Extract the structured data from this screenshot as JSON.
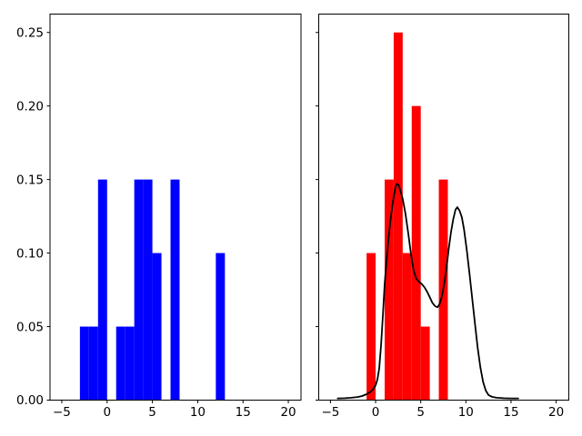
{
  "figure": {
    "background": "#ffffff",
    "title": "",
    "frame_color": "#000000"
  },
  "chart_data": [
    {
      "type": "bar",
      "subtype": "density-histogram",
      "panel": "left",
      "title": "",
      "xlabel": "",
      "ylabel": "",
      "bar_color": "#0000ff",
      "xlim": [
        -6.3,
        21.4
      ],
      "ylim": [
        0,
        0.2625
      ],
      "xticks": [
        -5,
        0,
        5,
        10,
        15,
        20
      ],
      "xtick_labels": [
        "−5",
        "0",
        "5",
        "10",
        "15",
        "20"
      ],
      "yticks": [
        0,
        0.05,
        0.1,
        0.15,
        0.2,
        0.25
      ],
      "ytick_labels": [
        "0.00",
        "0.05",
        "0.10",
        "0.15",
        "0.20",
        "0.25"
      ],
      "show_ytick_labels": true,
      "grid": false,
      "legend": null,
      "bin_edges": [
        -3,
        -2,
        -1,
        0,
        1,
        2,
        3,
        4,
        5,
        6,
        7,
        8,
        9,
        10,
        11,
        12,
        13
      ],
      "densities": [
        0.05,
        0.05,
        0.15,
        0,
        0.05,
        0.05,
        0.15,
        0.15,
        0.1,
        0,
        0.15,
        0,
        0,
        0,
        0,
        0.1
      ]
    },
    {
      "type": "bar",
      "subtype": "density-histogram-with-kde",
      "panel": "right",
      "title": "",
      "xlabel": "",
      "ylabel": "",
      "bar_color": "#ff0000",
      "xlim": [
        -6.3,
        21.4
      ],
      "ylim": [
        0,
        0.2625
      ],
      "xticks": [
        -5,
        0,
        5,
        10,
        15,
        20
      ],
      "xtick_labels": [
        "−5",
        "0",
        "5",
        "10",
        "15",
        "20"
      ],
      "yticks": [
        0,
        0.05,
        0.1,
        0.15,
        0.2,
        0.25
      ],
      "ytick_labels": [
        "0.00",
        "0.05",
        "0.10",
        "0.15",
        "0.20",
        "0.25"
      ],
      "show_ytick_labels": false,
      "grid": false,
      "legend": null,
      "bin_edges": [
        -1,
        0,
        1,
        2,
        3,
        4,
        5,
        6,
        7,
        8
      ],
      "densities": [
        0.1,
        0,
        0.15,
        0.25,
        0.1,
        0.2,
        0.05,
        0,
        0.15
      ],
      "kde": {
        "color": "#000000",
        "line_width": 1.8,
        "points": [
          [
            -4.2,
            0.0012
          ],
          [
            -3.4,
            0.0013
          ],
          [
            -2.7,
            0.0016
          ],
          [
            -2.0,
            0.0021
          ],
          [
            -1.5,
            0.0028
          ],
          [
            -1.0,
            0.004
          ],
          [
            -0.6,
            0.0055
          ],
          [
            -0.3,
            0.0072
          ],
          [
            0.0,
            0.01
          ],
          [
            0.2,
            0.014
          ],
          [
            0.4,
            0.0215
          ],
          [
            0.6,
            0.037
          ],
          [
            0.8,
            0.057
          ],
          [
            1.0,
            0.079
          ],
          [
            1.2,
            0.0945
          ],
          [
            1.45,
            0.111
          ],
          [
            1.7,
            0.125
          ],
          [
            1.95,
            0.136
          ],
          [
            2.2,
            0.145
          ],
          [
            2.35,
            0.147
          ],
          [
            2.55,
            0.1462
          ],
          [
            2.75,
            0.1425
          ],
          [
            3.0,
            0.137
          ],
          [
            3.3,
            0.127
          ],
          [
            3.6,
            0.114
          ],
          [
            3.9,
            0.1
          ],
          [
            4.2,
            0.0885
          ],
          [
            4.5,
            0.0825
          ],
          [
            4.8,
            0.0805
          ],
          [
            5.1,
            0.079
          ],
          [
            5.4,
            0.0768
          ],
          [
            5.7,
            0.0738
          ],
          [
            6.0,
            0.07
          ],
          [
            6.3,
            0.066
          ],
          [
            6.6,
            0.0638
          ],
          [
            6.85,
            0.0632
          ],
          [
            7.1,
            0.0655
          ],
          [
            7.35,
            0.0707
          ],
          [
            7.6,
            0.079
          ],
          [
            7.85,
            0.09
          ],
          [
            8.1,
            0.103
          ],
          [
            8.35,
            0.114
          ],
          [
            8.6,
            0.123
          ],
          [
            8.85,
            0.1295
          ],
          [
            9.05,
            0.1312
          ],
          [
            9.3,
            0.1288
          ],
          [
            9.55,
            0.1243
          ],
          [
            9.8,
            0.116
          ],
          [
            10.1,
            0.102
          ],
          [
            10.4,
            0.086
          ],
          [
            10.7,
            0.069
          ],
          [
            11.0,
            0.052
          ],
          [
            11.3,
            0.036
          ],
          [
            11.6,
            0.0225
          ],
          [
            11.9,
            0.0125
          ],
          [
            12.2,
            0.0065
          ],
          [
            12.5,
            0.0035
          ],
          [
            12.9,
            0.0022
          ],
          [
            13.4,
            0.0016
          ],
          [
            14.2,
            0.0013
          ],
          [
            15.0,
            0.0012
          ],
          [
            15.8,
            0.0012
          ]
        ]
      }
    }
  ]
}
